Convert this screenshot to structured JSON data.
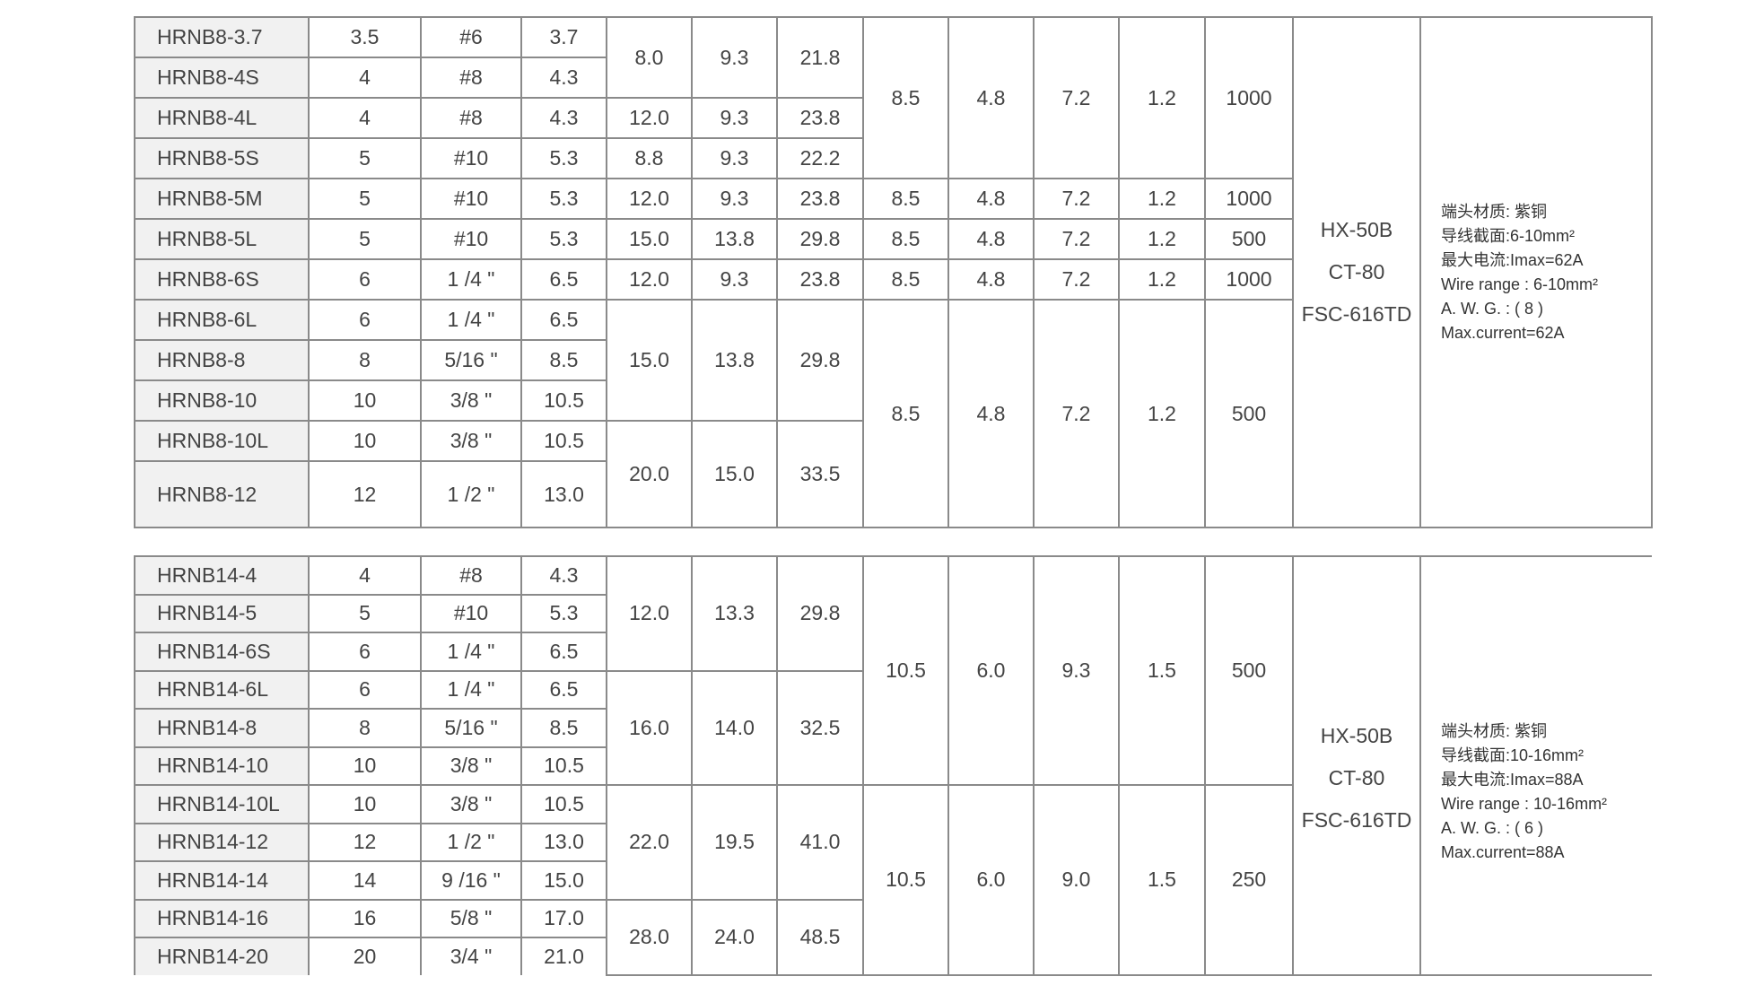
{
  "tables": [
    {
      "rows": [
        [
          "HRNB8-3.7",
          "3.5",
          "#6",
          "3.7",
          "8.0",
          "9.3",
          "21.8",
          "8.5",
          "4.8",
          "7.2",
          "1.2",
          "1000"
        ],
        [
          "HRNB8-4S",
          "4",
          "#8",
          "4.3"
        ],
        [
          "HRNB8-4L",
          "4",
          "#8",
          "4.3",
          "12.0",
          "9.3",
          "23.8"
        ],
        [
          "HRNB8-5S",
          "5",
          "#10",
          "5.3",
          "8.8",
          "9.3",
          "22.2"
        ],
        [
          "HRNB8-5M",
          "5",
          "#10",
          "5.3",
          "12.0",
          "9.3",
          "23.8",
          "8.5",
          "4.8",
          "7.2",
          "1.2",
          "1000"
        ],
        [
          "HRNB8-5L",
          "5",
          "#10",
          "5.3",
          "15.0",
          "13.8",
          "29.8",
          "8.5",
          "4.8",
          "7.2",
          "1.2",
          "500"
        ],
        [
          "HRNB8-6S",
          "6",
          "1 /4 \"",
          "6.5",
          "12.0",
          "9.3",
          "23.8",
          "8.5",
          "4.8",
          "7.2",
          "1.2",
          "1000"
        ],
        [
          "HRNB8-6L",
          "6",
          "1 /4 \"",
          "6.5",
          "15.0",
          "13.8",
          "29.8",
          "8.5",
          "4.8",
          "7.2",
          "1.2",
          "500"
        ],
        [
          "HRNB8-8",
          "8",
          "5/16 \"",
          "8.5"
        ],
        [
          "HRNB8-10",
          "10",
          "3/8 \"",
          "10.5"
        ],
        [
          "HRNB8-10L",
          "10",
          "3/8 \"",
          "10.5",
          "20.0",
          "15.0",
          "33.5"
        ],
        [
          "HRNB8-12",
          "12",
          "1 /2 \"",
          "13.0"
        ]
      ],
      "tools": [
        "HX-50B",
        "CT-80",
        "FSC-616TD"
      ],
      "notes": [
        "端头材质: 紫铜",
        "导线截面:6-10mm²",
        "最大电流:Imax=62A",
        "Wire range : 6-10mm²",
        "A. W. G. : ( 8 )",
        "Max.current=62A"
      ]
    },
    {
      "rows": [
        [
          "HRNB14-4",
          "4",
          "#8",
          "4.3",
          "12.0",
          "13.3",
          "29.8",
          "10.5",
          "6.0",
          "9.3",
          "1.5",
          "500"
        ],
        [
          "HRNB14-5",
          "5",
          "#10",
          "5.3"
        ],
        [
          "HRNB14-6S",
          "6",
          "1 /4 \"",
          "6.5"
        ],
        [
          "HRNB14-6L",
          "6",
          "1 /4 \"",
          "6.5",
          "16.0",
          "14.0",
          "32.5"
        ],
        [
          "HRNB14-8",
          "8",
          "5/16 \"",
          "8.5"
        ],
        [
          "HRNB14-10",
          "10",
          "3/8 \"",
          "10.5"
        ],
        [
          "HRNB14-10L",
          "10",
          "3/8 \"",
          "10.5",
          "22.0",
          "19.5",
          "41.0",
          "10.5",
          "6.0",
          "9.0",
          "1.5",
          "250"
        ],
        [
          "HRNB14-12",
          "12",
          "1 /2 \"",
          "13.0"
        ],
        [
          "HRNB14-14",
          "14",
          "9 /16 \"",
          "15.0"
        ],
        [
          "HRNB14-16",
          "16",
          "5/8 \"",
          "17.0",
          "28.0",
          "24.0",
          "48.5"
        ],
        [
          "HRNB14-20",
          "20",
          "3/4 \"",
          "21.0"
        ]
      ],
      "tools": [
        "HX-50B",
        "CT-80",
        "FSC-616TD"
      ],
      "notes": [
        "端头材质: 紫铜",
        "导线截面:10-16mm²",
        "最大电流:Imax=88A",
        "Wire range : 10-16mm²",
        "A. W. G. : ( 6 )",
        "Max.current=88A"
      ]
    }
  ]
}
